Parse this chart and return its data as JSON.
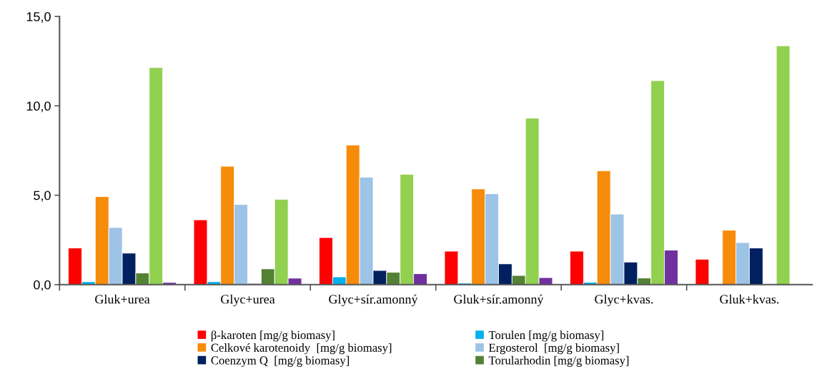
{
  "chart_data": {
    "type": "bar",
    "categories": [
      "Gluk+urea",
      "Glyc+urea",
      "Glyc+sír.amonný",
      "Gluk+sír.amonný",
      "Glyc+kvas.",
      "Gluk+kvas."
    ],
    "series": [
      {
        "name": "β-karoten [mg/g biomasy]",
        "color": "#ff0000",
        "values": [
          2.05,
          3.62,
          2.63,
          1.87,
          1.87,
          1.42
        ]
      },
      {
        "name": "Torulen [mg/g biomasy]",
        "color": "#00b0f0",
        "values": [
          0.16,
          0.16,
          0.43,
          0.08,
          0.13,
          null
        ]
      },
      {
        "name": "Celkové karotenoidy  [mg/g biomasy]",
        "color": "#f78b0a",
        "values": [
          4.92,
          6.62,
          7.81,
          5.35,
          6.37,
          3.04
        ]
      },
      {
        "name": "Ergosterol  [mg/g biomasy]",
        "color": "#9dc3e6",
        "values": [
          3.19,
          4.48,
          6.01,
          5.08,
          3.94,
          2.35
        ]
      },
      {
        "name": "Coenzym Q  [mg/g biomasy]",
        "color": "#002060",
        "values": [
          1.76,
          0.06,
          0.79,
          1.16,
          1.26,
          2.05
        ]
      },
      {
        "name": "Torularhodin [mg/g biomasy]",
        "color": "#548235",
        "values": [
          0.65,
          0.88,
          0.69,
          0.51,
          0.37,
          null
        ]
      },
      {
        "color": "#92d050",
        "values": [
          12.14,
          4.77,
          6.17,
          9.31,
          11.41,
          13.36
        ]
      },
      {
        "color": "#7030a0",
        "values": [
          0.12,
          0.36,
          0.61,
          0.39,
          1.93,
          null
        ]
      }
    ],
    "ylim": [
      0,
      15
    ],
    "yticks": [
      {
        "value": 0,
        "label": "0,0"
      },
      {
        "value": 5,
        "label": "5,0"
      },
      {
        "value": 10,
        "label": "10,0"
      },
      {
        "value": 15,
        "label": "15,0"
      }
    ],
    "grid": false,
    "legend": "bottom"
  }
}
